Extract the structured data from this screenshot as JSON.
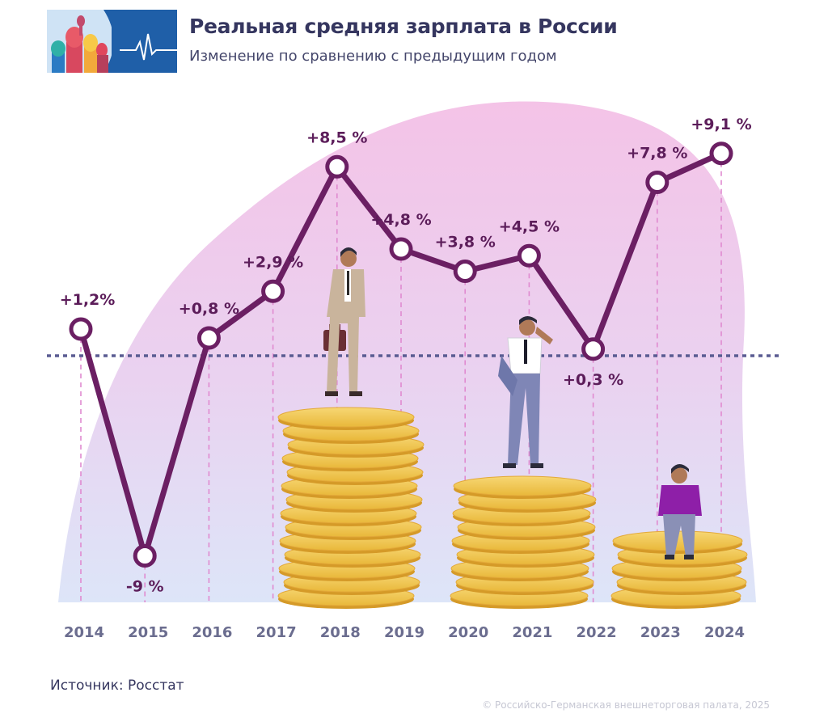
{
  "header": {
    "title": "Реальная средняя зарплата в России",
    "subtitle": "Изменение по сравнению с предыдущим годом"
  },
  "footer": {
    "source": "Источник: Росстат",
    "copyright": "© Российско-Германская внешнеторговая палата, 2025"
  },
  "colors": {
    "line": "#6b1f63",
    "baseline": "#5a5c92",
    "coins": "#f2c94c",
    "background_blob_top": "#f3c6e8",
    "background_blob_bottom": "#dfe4f7"
  },
  "chart_data": {
    "type": "line",
    "categories": [
      "2014",
      "2015",
      "2016",
      "2017",
      "2018",
      "2019",
      "2020",
      "2021",
      "2022",
      "2023",
      "2024"
    ],
    "values": [
      1.2,
      -9,
      0.8,
      2.9,
      8.5,
      4.8,
      3.8,
      4.5,
      0.3,
      7.8,
      9.1
    ],
    "labels": [
      "+1,2%",
      "-9 %",
      "+0,8 %",
      "+2,9 %",
      "+8,5 %",
      "+4,8 %",
      "+3,8 %",
      "+4,5 %",
      "+0,3 %",
      "+7,8 %",
      "+9,1 %"
    ],
    "title": "Реальная средняя зарплата в России",
    "subtitle": "Изменение по сравнению с предыдущим годом",
    "xlabel": "",
    "ylabel": "",
    "baseline": 0,
    "grid": false
  }
}
